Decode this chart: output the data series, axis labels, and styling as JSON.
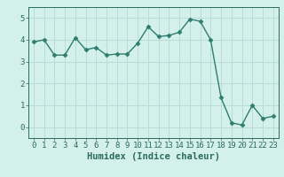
{
  "x": [
    0,
    1,
    2,
    3,
    4,
    5,
    6,
    7,
    8,
    9,
    10,
    11,
    12,
    13,
    14,
    15,
    16,
    17,
    18,
    19,
    20,
    21,
    22,
    23
  ],
  "y": [
    3.9,
    4.0,
    3.3,
    3.3,
    4.1,
    3.55,
    3.65,
    3.3,
    3.35,
    3.35,
    3.85,
    4.6,
    4.15,
    4.2,
    4.35,
    4.95,
    4.85,
    4.0,
    1.35,
    0.2,
    0.1,
    1.0,
    0.4,
    0.5
  ],
  "line_color": "#2e7d6e",
  "marker": "D",
  "marker_size": 2.5,
  "bg_color": "#d4f0eb",
  "grid_color": "#b8ddd8",
  "xlabel": "Humidex (Indice chaleur)",
  "ylim": [
    -0.5,
    5.5
  ],
  "xlim": [
    -0.5,
    23.5
  ],
  "yticks": [
    0,
    1,
    2,
    3,
    4,
    5
  ],
  "xticks": [
    0,
    1,
    2,
    3,
    4,
    5,
    6,
    7,
    8,
    9,
    10,
    11,
    12,
    13,
    14,
    15,
    16,
    17,
    18,
    19,
    20,
    21,
    22,
    23
  ],
  "tick_color": "#2a6b5e",
  "label_fontsize": 7.5,
  "tick_fontsize": 6.5
}
